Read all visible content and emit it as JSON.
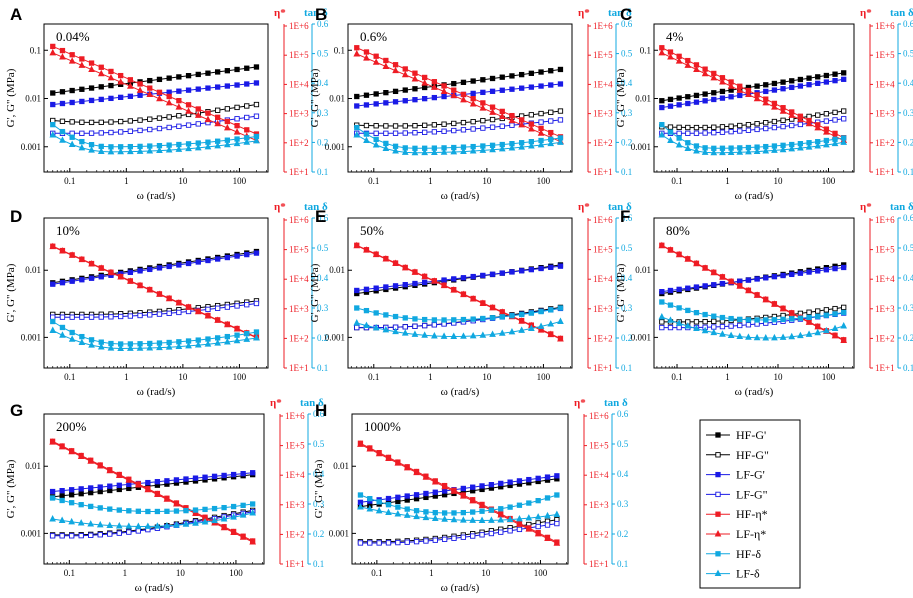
{
  "figure": {
    "legend": [
      {
        "label": "HF-G'",
        "color": "#000000",
        "marker": "square",
        "filled": true
      },
      {
        "label": "HF-G\"",
        "color": "#000000",
        "marker": "square",
        "filled": false
      },
      {
        "label": "LF-G'",
        "color": "#1a1ae6",
        "marker": "square",
        "filled": true
      },
      {
        "label": "LF-G\"",
        "color": "#1a1ae6",
        "marker": "square",
        "filled": false
      },
      {
        "label": "HF-η*",
        "color": "#ee1c24",
        "marker": "square",
        "filled": true
      },
      {
        "label": "LF-η*",
        "color": "#ee1c24",
        "marker": "triangle",
        "filled": true
      },
      {
        "label": "HF-δ",
        "color": "#10a8e0",
        "marker": "square",
        "filled": true
      },
      {
        "label": "LF-δ",
        "color": "#10a8e0",
        "marker": "triangle",
        "filled": true
      }
    ],
    "colors": {
      "G": "#000000",
      "LF": "#1a1ae6",
      "eta": "#ee1c24",
      "delta": "#10a8e0"
    }
  },
  "chart_data": [
    {
      "type": "line",
      "panel": "A",
      "strain": "0.04%",
      "xlabel": "ω (rad/s)",
      "ylabel_left": "G', G\" (MPa)",
      "ylabel_eta": "η*",
      "ylabel_tan": "tan δ",
      "x_ticks": [
        "0.1",
        "1",
        "10",
        "100"
      ],
      "y_left_ticks": [
        "0.001",
        "0.01",
        "0.1"
      ],
      "y_eta_ticks": [
        "1E+1",
        "1E+2",
        "1E+3",
        "1E+4",
        "1E+5",
        "1E+6"
      ],
      "y_tan_ticks": [
        "0.1",
        "0.2",
        "0.3",
        "0.4",
        "0.5",
        "0.6"
      ],
      "xlim": [
        0.035,
        320
      ],
      "ylim_left": [
        0.0003,
        0.35
      ],
      "ylim_eta": [
        10,
        1000000
      ],
      "ylim_tan": [
        0.1,
        0.6
      ],
      "series": [
        {
          "name": "HF-G'",
          "axis": "left",
          "start": 0.013,
          "end": 0.045
        },
        {
          "name": "HF-G\"",
          "axis": "left",
          "start": 0.0035,
          "end": 0.0075,
          "min": 0.0032,
          "min_at": 0.25
        },
        {
          "name": "LF-G'",
          "axis": "left",
          "start": 0.0075,
          "end": 0.021
        },
        {
          "name": "LF-G\"",
          "axis": "left",
          "start": 0.0019,
          "end": 0.0043,
          "min": 0.0019,
          "min_at": 0.15
        },
        {
          "name": "HF-η*",
          "axis": "eta",
          "start": 200000,
          "end": 200
        },
        {
          "name": "LF-η*",
          "axis": "eta",
          "start": 120000,
          "end": 120
        },
        {
          "name": "HF-δ",
          "axis": "tan",
          "start": 0.26,
          "end": 0.22,
          "min": 0.185,
          "min_at": 0.5
        },
        {
          "name": "LF-δ",
          "axis": "tan",
          "start": 0.225,
          "end": 0.205,
          "min": 0.168,
          "min_at": 0.5
        }
      ]
    },
    {
      "type": "line",
      "panel": "B",
      "strain": "0.6%",
      "xlabel": "ω (rad/s)",
      "ylabel_left": "G', G\" (MPa)",
      "ylabel_eta": "η*",
      "ylabel_tan": "tan δ",
      "x_ticks": [
        "0.1",
        "1",
        "10",
        "100"
      ],
      "y_left_ticks": [
        "0.001",
        "0.01",
        "0.1"
      ],
      "y_eta_ticks": [
        "1E+1",
        "1E+2",
        "1E+3",
        "1E+4",
        "1E+5",
        "1E+6"
      ],
      "y_tan_ticks": [
        "0.1",
        "0.2",
        "0.3",
        "0.4",
        "0.5",
        "0.6"
      ],
      "xlim": [
        0.035,
        320
      ],
      "ylim_left": [
        0.0003,
        0.35
      ],
      "ylim_eta": [
        10,
        1000000
      ],
      "ylim_tan": [
        0.1,
        0.6
      ],
      "series": [
        {
          "name": "HF-G'",
          "axis": "left",
          "start": 0.011,
          "end": 0.04
        },
        {
          "name": "HF-G\"",
          "axis": "left",
          "start": 0.0028,
          "end": 0.0055,
          "min": 0.0027,
          "min_at": 0.25
        },
        {
          "name": "LF-G'",
          "axis": "left",
          "start": 0.007,
          "end": 0.02
        },
        {
          "name": "LF-G\"",
          "axis": "left",
          "start": 0.0019,
          "end": 0.0036,
          "min": 0.0019,
          "min_at": 0.15
        },
        {
          "name": "HF-η*",
          "axis": "eta",
          "start": 180000,
          "end": 160
        },
        {
          "name": "LF-η*",
          "axis": "eta",
          "start": 110000,
          "end": 110
        },
        {
          "name": "HF-δ",
          "axis": "tan",
          "start": 0.25,
          "end": 0.215,
          "min": 0.18,
          "min_at": 0.5
        },
        {
          "name": "LF-δ",
          "axis": "tan",
          "start": 0.225,
          "end": 0.2,
          "min": 0.165,
          "min_at": 0.5
        }
      ]
    },
    {
      "type": "line",
      "panel": "C",
      "strain": "4%",
      "xlabel": "ω (rad/s)",
      "ylabel_left": "G', G\" (MPa)",
      "ylabel_eta": "η*",
      "ylabel_tan": "tan δ",
      "x_ticks": [
        "0.1",
        "1",
        "10",
        "100"
      ],
      "y_left_ticks": [
        "0.001",
        "0.01",
        "0.1"
      ],
      "y_eta_ticks": [
        "1E+1",
        "1E+2",
        "1E+3",
        "1E+4",
        "1E+5",
        "1E+6"
      ],
      "y_tan_ticks": [
        "0.1",
        "0.2",
        "0.3",
        "0.4",
        "0.5",
        "0.6"
      ],
      "xlim": [
        0.035,
        320
      ],
      "ylim_left": [
        0.0003,
        0.35
      ],
      "ylim_eta": [
        10,
        1000000
      ],
      "ylim_tan": [
        0.1,
        0.6
      ],
      "series": [
        {
          "name": "HF-G'",
          "axis": "left",
          "start": 0.009,
          "end": 0.034
        },
        {
          "name": "HF-G\"",
          "axis": "left",
          "start": 0.0026,
          "end": 0.0055,
          "min": 0.0025,
          "min_at": 0.25
        },
        {
          "name": "LF-G'",
          "axis": "left",
          "start": 0.0065,
          "end": 0.025
        },
        {
          "name": "LF-G\"",
          "axis": "left",
          "start": 0.0019,
          "end": 0.0038,
          "min": 0.0019,
          "min_at": 0.15
        },
        {
          "name": "HF-η*",
          "axis": "eta",
          "start": 180000,
          "end": 150
        },
        {
          "name": "LF-η*",
          "axis": "eta",
          "start": 120000,
          "end": 120
        },
        {
          "name": "HF-δ",
          "axis": "tan",
          "start": 0.26,
          "end": 0.215,
          "min": 0.18,
          "min_at": 0.5
        },
        {
          "name": "LF-δ",
          "axis": "tan",
          "start": 0.225,
          "end": 0.2,
          "min": 0.165,
          "min_at": 0.5
        }
      ]
    },
    {
      "type": "line",
      "panel": "D",
      "strain": "10%",
      "xlabel": "ω (rad/s)",
      "ylabel_left": "G', G\" (MPa)",
      "ylabel_eta": "η*",
      "ylabel_tan": "tan δ",
      "x_ticks": [
        "0.1",
        "1",
        "10",
        "100"
      ],
      "y_left_ticks": [
        "0.001",
        "0.01"
      ],
      "y_eta_ticks": [
        "1E+1",
        "1E+2",
        "1E+3",
        "1E+4",
        "1E+5",
        "1E+6"
      ],
      "y_tan_ticks": [
        "0.1",
        "0.2",
        "0.3",
        "0.4",
        "0.5",
        "0.6"
      ],
      "xlim": [
        0.035,
        320
      ],
      "ylim_left": [
        0.00035,
        0.06
      ],
      "ylim_eta": [
        10,
        1000000
      ],
      "ylim_tan": [
        0.1,
        0.6
      ],
      "series": [
        {
          "name": "HF-G'",
          "axis": "left",
          "start": 0.0065,
          "end": 0.019
        },
        {
          "name": "HF-G\"",
          "axis": "left",
          "start": 0.0022,
          "end": 0.0035,
          "min": 0.0022,
          "min_at": 0.2
        },
        {
          "name": "LF-G'",
          "axis": "left",
          "start": 0.0062,
          "end": 0.018
        },
        {
          "name": "LF-G\"",
          "axis": "left",
          "start": 0.002,
          "end": 0.0032,
          "min": 0.002,
          "min_at": 0.2
        },
        {
          "name": "HF-η*",
          "axis": "eta",
          "start": 130000,
          "end": 110
        },
        {
          "name": "LF-η*",
          "axis": "eta",
          "start": 125000,
          "end": 105
        },
        {
          "name": "HF-δ",
          "axis": "tan",
          "start": 0.255,
          "end": 0.22,
          "min": 0.18,
          "min_at": 0.8
        },
        {
          "name": "LF-δ",
          "axis": "tan",
          "start": 0.225,
          "end": 0.2,
          "min": 0.165,
          "min_at": 0.8
        }
      ]
    },
    {
      "type": "line",
      "panel": "E",
      "strain": "50%",
      "xlabel": "ω (rad/s)",
      "ylabel_left": "G', G\" (MPa)",
      "ylabel_eta": "η*",
      "ylabel_tan": "tan δ",
      "x_ticks": [
        "0.1",
        "1",
        "10",
        "100"
      ],
      "y_left_ticks": [
        "0.001",
        "0.01"
      ],
      "y_eta_ticks": [
        "1E+1",
        "1E+2",
        "1E+3",
        "1E+4",
        "1E+5",
        "1E+6"
      ],
      "y_tan_ticks": [
        "0.1",
        "0.2",
        "0.3",
        "0.4",
        "0.5",
        "0.6"
      ],
      "xlim": [
        0.035,
        320
      ],
      "ylim_left": [
        0.00035,
        0.06
      ],
      "ylim_eta": [
        10,
        1000000
      ],
      "ylim_tan": [
        0.1,
        0.6
      ],
      "series": [
        {
          "name": "HF-G'",
          "axis": "left",
          "start": 0.0045,
          "end": 0.012
        },
        {
          "name": "HF-G\"",
          "axis": "left",
          "start": 0.0014,
          "end": 0.0028,
          "min": 0.0014,
          "min_at": 0.1
        },
        {
          "name": "LF-G'",
          "axis": "left",
          "start": 0.005,
          "end": 0.0115
        },
        {
          "name": "LF-G\"",
          "axis": "left",
          "start": 0.0014,
          "end": 0.0027,
          "min": 0.0014,
          "min_at": 0.1
        },
        {
          "name": "HF-η*",
          "axis": "eta",
          "start": 140000,
          "end": 100
        },
        {
          "name": "LF-η*",
          "axis": "eta",
          "start": 135000,
          "end": 95
        },
        {
          "name": "HF-δ",
          "axis": "tan",
          "start": 0.3,
          "end": 0.3,
          "min": 0.26,
          "min_at": 1.5
        },
        {
          "name": "LF-δ",
          "axis": "tan",
          "start": 0.25,
          "end": 0.255,
          "min": 0.205,
          "min_at": 2.5
        }
      ]
    },
    {
      "type": "line",
      "panel": "F",
      "strain": "80%",
      "xlabel": "ω (rad/s)",
      "ylabel_left": "G', G\" (MPa)",
      "ylabel_eta": "η*",
      "ylabel_tan": "tan δ",
      "x_ticks": [
        "0.1",
        "1",
        "10",
        "100"
      ],
      "y_left_ticks": [
        "0.001",
        "0.01"
      ],
      "y_eta_ticks": [
        "1E+1",
        "1E+2",
        "1E+3",
        "1E+4",
        "1E+5",
        "1E+6"
      ],
      "y_tan_ticks": [
        "0.1",
        "0.2",
        "0.3",
        "0.4",
        "0.5",
        "0.6"
      ],
      "xlim": [
        0.035,
        320
      ],
      "ylim_left": [
        0.00035,
        0.06
      ],
      "ylim_eta": [
        10,
        1000000
      ],
      "ylim_tan": [
        0.1,
        0.6
      ],
      "series": [
        {
          "name": "HF-G'",
          "axis": "left",
          "start": 0.0045,
          "end": 0.012
        },
        {
          "name": "HF-G\"",
          "axis": "left",
          "start": 0.0017,
          "end": 0.0028,
          "min": 0.0017,
          "min_at": 0.15
        },
        {
          "name": "LF-G'",
          "axis": "left",
          "start": 0.0048,
          "end": 0.011
        },
        {
          "name": "LF-G\"",
          "axis": "left",
          "start": 0.0014,
          "end": 0.0023,
          "min": 0.0014,
          "min_at": 0.15
        },
        {
          "name": "HF-η*",
          "axis": "eta",
          "start": 140000,
          "end": 90
        },
        {
          "name": "LF-η*",
          "axis": "eta",
          "start": 135000,
          "end": 85
        },
        {
          "name": "HF-δ",
          "axis": "tan",
          "start": 0.32,
          "end": 0.285,
          "min": 0.26,
          "min_at": 4.0
        },
        {
          "name": "LF-δ",
          "axis": "tan",
          "start": 0.27,
          "end": 0.24,
          "min": 0.2,
          "min_at": 6.0
        }
      ]
    },
    {
      "type": "line",
      "panel": "G",
      "strain": "200%",
      "xlabel": "ω (rad/s)",
      "ylabel_left": "G', G\" (MPa)",
      "ylabel_eta": "η*",
      "ylabel_tan": "tan δ",
      "x_ticks": [
        "0.1",
        "1",
        "10",
        "100"
      ],
      "y_left_ticks": [
        "0.001",
        "0.01"
      ],
      "y_eta_ticks": [
        "1E+1",
        "1E+2",
        "1E+3",
        "1E+4",
        "1E+5",
        "1E+6"
      ],
      "y_tan_ticks": [
        "0.1",
        "0.2",
        "0.3",
        "0.4",
        "0.5",
        "0.6"
      ],
      "xlim": [
        0.035,
        320
      ],
      "ylim_left": [
        0.00035,
        0.06
      ],
      "ylim_eta": [
        10,
        1000000
      ],
      "ylim_tan": [
        0.1,
        0.6
      ],
      "series": [
        {
          "name": "HF-G'",
          "axis": "left",
          "start": 0.0035,
          "end": 0.0075
        },
        {
          "name": "HF-G\"",
          "axis": "left",
          "start": 0.00095,
          "end": 0.0022,
          "min": 0.00095,
          "min_at": 0.1
        },
        {
          "name": "LF-G'",
          "axis": "left",
          "start": 0.0042,
          "end": 0.008
        },
        {
          "name": "LF-G\"",
          "axis": "left",
          "start": 0.00092,
          "end": 0.0021,
          "min": 0.00092,
          "min_at": 0.1
        },
        {
          "name": "HF-η*",
          "axis": "eta",
          "start": 140000,
          "end": 60
        },
        {
          "name": "LF-η*",
          "axis": "eta",
          "start": 130000,
          "end": 55
        },
        {
          "name": "HF-δ",
          "axis": "tan",
          "start": 0.32,
          "end": 0.3,
          "min": 0.275,
          "min_at": 3.0
        },
        {
          "name": "LF-δ",
          "axis": "tan",
          "start": 0.25,
          "end": 0.27,
          "min": 0.225,
          "min_at": 2.0
        }
      ]
    },
    {
      "type": "line",
      "panel": "H",
      "strain": "1000%",
      "xlabel": "ω (rad/s)",
      "ylabel_left": "G', G\" (MPa)",
      "ylabel_eta": "η*",
      "ylabel_tan": "tan δ",
      "x_ticks": [
        "0.1",
        "1",
        "10",
        "100"
      ],
      "y_left_ticks": [
        "0.001",
        "0.01"
      ],
      "y_eta_ticks": [
        "1E+1",
        "1E+2",
        "1E+3",
        "1E+4",
        "1E+5",
        "1E+6"
      ],
      "y_tan_ticks": [
        "0.1",
        "0.2",
        "0.3",
        "0.4",
        "0.5",
        "0.6"
      ],
      "xlim": [
        0.035,
        320
      ],
      "ylim_left": [
        0.00035,
        0.06
      ],
      "ylim_eta": [
        10,
        1000000
      ],
      "ylim_tan": [
        0.1,
        0.6
      ],
      "series": [
        {
          "name": "HF-G'",
          "axis": "left",
          "start": 0.0025,
          "end": 0.0065
        },
        {
          "name": "HF-G\"",
          "axis": "left",
          "start": 0.00075,
          "end": 0.0016,
          "min": 0.00075,
          "min_at": 0.1
        },
        {
          "name": "LF-G'",
          "axis": "left",
          "start": 0.0029,
          "end": 0.0072
        },
        {
          "name": "LF-G\"",
          "axis": "left",
          "start": 0.00072,
          "end": 0.0014,
          "min": 0.00072,
          "min_at": 0.1
        },
        {
          "name": "HF-η*",
          "axis": "eta",
          "start": 120000,
          "end": 55
        },
        {
          "name": "LF-η*",
          "axis": "eta",
          "start": 110000,
          "end": 50
        },
        {
          "name": "HF-δ",
          "axis": "tan",
          "start": 0.33,
          "end": 0.33,
          "min": 0.27,
          "min_at": 2.0
        },
        {
          "name": "LF-δ",
          "axis": "tan",
          "start": 0.29,
          "end": 0.265,
          "min": 0.245,
          "min_at": 8.0
        }
      ]
    }
  ]
}
